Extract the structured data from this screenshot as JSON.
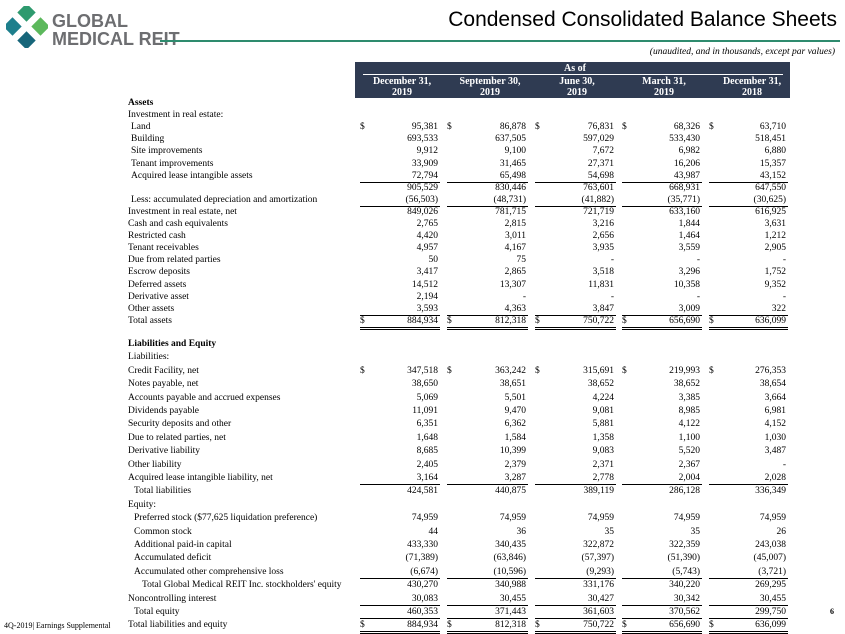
{
  "header": {
    "logo": [
      "GLOBAL",
      "MEDICAL REIT"
    ],
    "title": "Condensed Consolidated Balance Sheets",
    "subtitle": "(unaudited, and in thousands, except par values)"
  },
  "table": {
    "group": "As of",
    "columns": [
      [
        "December 31,",
        "2019"
      ],
      [
        "September 30,",
        "2019"
      ],
      [
        "June 30,",
        "2019"
      ],
      [
        "March 31,",
        "2019"
      ],
      [
        "December 31,",
        "2018"
      ]
    ],
    "sections": [
      {
        "rows": [
          {
            "label": "Assets"
          },
          {
            "label": "Investment in real estate:"
          },
          {
            "label": "Land",
            "currency": "$",
            "values": [
              "95,381",
              "86,878",
              "76,831",
              "68,326",
              "63,710"
            ]
          },
          {
            "label": "Building",
            "values": [
              "693,533",
              "637,505",
              "597,029",
              "533,430",
              "518,451"
            ]
          },
          {
            "label": "Site improvements",
            "values": [
              "9,912",
              "9,100",
              "7,672",
              "6,982",
              "6,880"
            ]
          },
          {
            "label": "Tenant improvements",
            "values": [
              "33,909",
              "31,465",
              "27,371",
              "16,206",
              "15,357"
            ]
          },
          {
            "label": "Acquired lease intangible assets",
            "values": [
              "72,794",
              "65,498",
              "54,698",
              "43,987",
              "43,152"
            ]
          },
          {
            "label": null,
            "values": [
              "905,529",
              "830,446",
              "763,601",
              "668,931",
              "647,550"
            ]
          },
          {
            "label": "Less: accumulated depreciation and amortization",
            "values": [
              "(56,503)",
              "(48,731)",
              "(41,882)",
              "(35,771)",
              "(30,625)"
            ]
          },
          {
            "label": "Investment in real estate, net",
            "values": [
              "849,026",
              "781,715",
              "721,719",
              "633,160",
              "616,925"
            ]
          },
          {
            "label": "Cash and cash equivalents",
            "values": [
              "2,765",
              "2,815",
              "3,216",
              "1,844",
              "3,631"
            ]
          },
          {
            "label": "Restricted cash",
            "values": [
              "4,420",
              "3,011",
              "2,656",
              "1,464",
              "1,212"
            ]
          },
          {
            "label": "Tenant receivables",
            "values": [
              "4,957",
              "4,167",
              "3,935",
              "3,559",
              "2,905"
            ]
          },
          {
            "label": "Due from related parties",
            "values": [
              "50",
              "75",
              "-",
              "-",
              "-"
            ]
          },
          {
            "label": "Escrow deposits",
            "values": [
              "3,417",
              "2,865",
              "3,518",
              "3,296",
              "1,752"
            ]
          },
          {
            "label": "Deferred assets",
            "values": [
              "14,512",
              "13,307",
              "11,831",
              "10,358",
              "9,352"
            ]
          },
          {
            "label": "Derivative asset",
            "values": [
              "2,194",
              "-",
              "-",
              "-",
              "-"
            ]
          },
          {
            "label": "Other assets",
            "values": [
              "3,593",
              "4,363",
              "3,847",
              "3,009",
              "322"
            ]
          },
          {
            "label": "Total assets",
            "currency": "$",
            "values": [
              "884,934",
              "812,318",
              "750,722",
              "656,690",
              "636,099"
            ]
          }
        ]
      },
      {
        "rows": [
          {
            "label": "Liabilities and Equity"
          },
          {
            "label": "Liabilities:"
          },
          {
            "label": "Credit Facility, net",
            "currency": "$",
            "values": [
              "347,518",
              "363,242",
              "315,691",
              "219,993",
              "276,353"
            ]
          },
          {
            "label": "Notes payable, net",
            "values": [
              "38,650",
              "38,651",
              "38,652",
              "38,652",
              "38,654"
            ]
          },
          {
            "label": "Accounts payable and accrued expenses",
            "values": [
              "5,069",
              "5,501",
              "4,224",
              "3,385",
              "3,664"
            ]
          },
          {
            "label": "Dividends payable",
            "values": [
              "11,091",
              "9,470",
              "9,081",
              "8,985",
              "6,981"
            ]
          },
          {
            "label": "Security deposits and other",
            "values": [
              "6,351",
              "6,362",
              "5,881",
              "4,122",
              "4,152"
            ]
          },
          {
            "label": "Due to related parties, net",
            "values": [
              "1,648",
              "1,584",
              "1,358",
              "1,100",
              "1,030"
            ]
          },
          {
            "label": "Derivative liability",
            "values": [
              "8,685",
              "10,399",
              "9,083",
              "5,520",
              "3,487"
            ]
          },
          {
            "label": "Other liability",
            "values": [
              "2,405",
              "2,379",
              "2,371",
              "2,367",
              "-"
            ]
          },
          {
            "label": "Acquired lease intangible liability, net",
            "values": [
              "3,164",
              "3,287",
              "2,778",
              "2,004",
              "2,028"
            ]
          },
          {
            "label": "Total liabilities",
            "values": [
              "424,581",
              "440,875",
              "389,119",
              "286,128",
              "336,349"
            ]
          },
          {
            "label": "Equity:"
          },
          {
            "label": "Preferred stock ($77,625 liquidation preference)",
            "values": [
              "74,959",
              "74,959",
              "74,959",
              "74,959",
              "74,959"
            ]
          },
          {
            "label": "Common stock",
            "values": [
              "44",
              "36",
              "35",
              "35",
              "26"
            ]
          },
          {
            "label": "Additional paid-in capital",
            "values": [
              "433,330",
              "340,435",
              "322,872",
              "322,359",
              "243,038"
            ]
          },
          {
            "label": "Accumulated deficit",
            "values": [
              "(71,389)",
              "(63,846)",
              "(57,397)",
              "(51,390)",
              "(45,007)"
            ]
          },
          {
            "label": "Accumulated other comprehensive loss",
            "values": [
              "(6,674)",
              "(10,596)",
              "(9,293)",
              "(5,743)",
              "(3,721)"
            ]
          },
          {
            "label": "Total Global Medical REIT Inc. stockholders' equity",
            "values": [
              "430,270",
              "340,988",
              "331,176",
              "340,220",
              "269,295"
            ]
          },
          {
            "label": "Noncontrolling interest",
            "values": [
              "30,083",
              "30,455",
              "30,427",
              "30,342",
              "30,455"
            ]
          },
          {
            "label": "Total equity",
            "values": [
              "460,353",
              "371,443",
              "361,603",
              "370,562",
              "299,750"
            ]
          },
          {
            "label": "Total liabilities and equity",
            "currency": "$",
            "values": [
              "884,934",
              "812,318",
              "750,722",
              "656,690",
              "636,099"
            ]
          }
        ]
      }
    ]
  },
  "footer": {
    "note": "4Q-2019| Earnings Supplemental",
    "page": "6"
  }
}
